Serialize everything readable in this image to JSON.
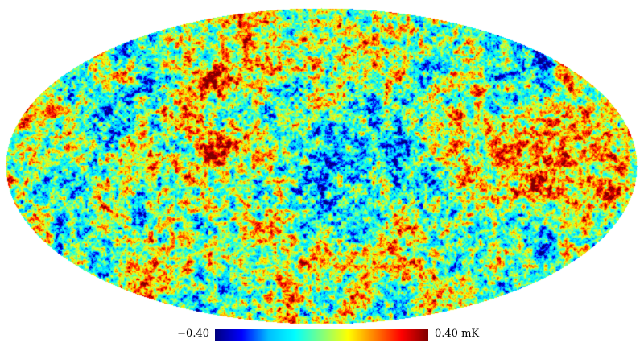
{
  "map": {
    "projection": "mollweide",
    "colormap": "jet",
    "colormap_stops": [
      "#00007f",
      "#0000ff",
      "#00bfff",
      "#00ffff",
      "#7fff7f",
      "#ffff00",
      "#ff7f00",
      "#ff0000",
      "#7f0000"
    ],
    "background": "#ffffff"
  },
  "colorbar": {
    "min_label": "−0.40",
    "max_label": "0.40 mK",
    "min_value": -0.4,
    "max_value": 0.4,
    "unit": "mK"
  }
}
